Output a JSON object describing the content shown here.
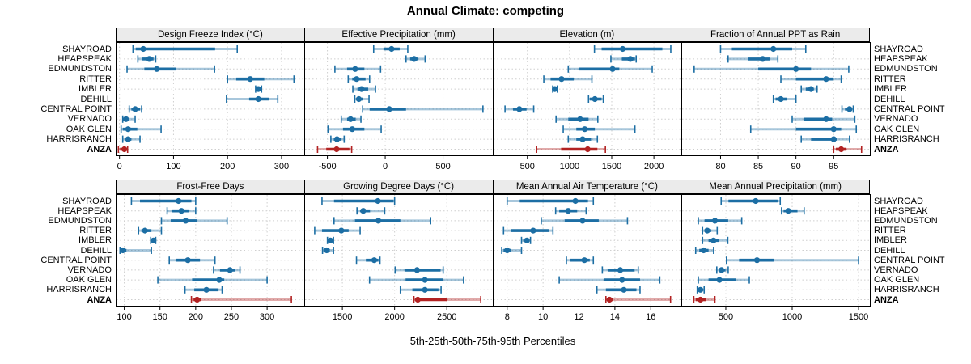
{
  "title": "Annual Climate: competing",
  "caption": "5th-25th-50th-75th-95th Percentiles",
  "percentile_labels": [
    "5th",
    "25th",
    "50th",
    "75th",
    "95th"
  ],
  "locations": [
    "SHAYROAD",
    "HEAPSPEAK",
    "EDMUNDSTON",
    "RITTER",
    "IMBLER",
    "DEHILL",
    "CENTRAL POINT",
    "VERNADO",
    "OAK GLEN",
    "HARRISRANCH",
    "ANZA"
  ],
  "highlight_location": "ANZA",
  "colors": {
    "series_blue": "#1c6ea4",
    "highlight_red": "#b22222",
    "strip_bg": "#ebebeb",
    "grid": "#cfcfcf",
    "border": "#000000",
    "text": "#000000"
  },
  "chart_data": {
    "type": "dotplot",
    "note": "Trellis dot plot; each row shows [5th,25th,50th,75th,95th] percentiles per location",
    "legend_position": "none",
    "grid": "dotted",
    "panels": [
      {
        "title": "Design Freeze Index (°C)",
        "grid_row": 0,
        "grid_col": 0,
        "xlim": [
          -7,
          342
        ],
        "ticks": [
          0,
          100,
          200,
          300
        ],
        "values": [
          [
            25,
            30,
            44,
            177,
            218
          ],
          [
            34,
            41,
            55,
            63,
            67
          ],
          [
            14,
            46,
            69,
            105,
            176
          ],
          [
            200,
            216,
            242,
            268,
            323
          ],
          [
            252,
            255,
            257,
            260,
            263
          ],
          [
            198,
            240,
            257,
            277,
            293
          ],
          [
            18,
            22,
            29,
            38,
            41
          ],
          [
            6,
            8,
            12,
            17,
            29
          ],
          [
            3,
            6,
            16,
            33,
            77
          ],
          [
            6,
            11,
            16,
            22,
            38
          ],
          [
            -2,
            1,
            9,
            13,
            15
          ]
        ]
      },
      {
        "title": "Effective Precipitation (mm)",
        "grid_row": 0,
        "grid_col": 1,
        "xlim": [
          -700,
          930
        ],
        "ticks": [
          -500,
          0,
          500
        ],
        "values": [
          [
            -100,
            -15,
            55,
            125,
            195
          ],
          [
            180,
            215,
            250,
            285,
            345
          ],
          [
            -435,
            -330,
            -260,
            -180,
            -40
          ],
          [
            -320,
            -285,
            -247,
            -170,
            -135
          ],
          [
            -280,
            -240,
            -205,
            -147,
            -84
          ],
          [
            -263,
            -250,
            -228,
            -193,
            -140
          ],
          [
            -195,
            -135,
            35,
            180,
            845
          ],
          [
            -380,
            -330,
            -300,
            -255,
            -210
          ],
          [
            -495,
            -365,
            -285,
            -180,
            -35
          ],
          [
            -470,
            -445,
            -417,
            -378,
            -355
          ],
          [
            -585,
            -510,
            -420,
            -310,
            -290
          ]
        ]
      },
      {
        "title": "Elevation (m)",
        "grid_row": 0,
        "grid_col": 2,
        "xlim": [
          90,
          2325
        ],
        "ticks": [
          500,
          1000,
          1500,
          2000
        ],
        "values": [
          [
            1295,
            1380,
            1630,
            2100,
            2200
          ],
          [
            1490,
            1620,
            1720,
            1775,
            1790
          ],
          [
            985,
            1110,
            1510,
            1590,
            1980
          ],
          [
            695,
            775,
            905,
            1050,
            1265
          ],
          [
            800,
            815,
            825,
            840,
            855
          ],
          [
            1225,
            1240,
            1300,
            1380,
            1400
          ],
          [
            235,
            330,
            405,
            490,
            575
          ],
          [
            840,
            985,
            1125,
            1225,
            1335
          ],
          [
            925,
            1080,
            1180,
            1300,
            1775
          ],
          [
            985,
            1080,
            1155,
            1255,
            1330
          ],
          [
            610,
            900,
            1215,
            1330,
            1425
          ]
        ]
      },
      {
        "title": "Fraction of Annual PPT as Rain",
        "grid_row": 0,
        "grid_col": 3,
        "xlim": [
          74.8,
          99.8
        ],
        "ticks": [
          80,
          85,
          90,
          95
        ],
        "values": [
          [
            80,
            81.5,
            87,
            89.5,
            91.3
          ],
          [
            81,
            83.7,
            85.6,
            86.5,
            87.6
          ],
          [
            76.5,
            85,
            90,
            92,
            97
          ],
          [
            88,
            90,
            94,
            95,
            96
          ],
          [
            90.7,
            91.3,
            92,
            92.3,
            92.8
          ],
          [
            87,
            87.3,
            88,
            88.8,
            90
          ],
          [
            96.1,
            96.5,
            97.1,
            97.3,
            97.6
          ],
          [
            89.5,
            91,
            94,
            94.8,
            97.8
          ],
          [
            84,
            90,
            95,
            96,
            98
          ],
          [
            90.7,
            92,
            95,
            95.5,
            97.1
          ],
          [
            95,
            95.3,
            96,
            96.7,
            98.7
          ]
        ]
      },
      {
        "title": "Frost-Free Days",
        "grid_row": 1,
        "grid_col": 0,
        "xlim": [
          88,
          352
        ],
        "ticks": [
          100,
          150,
          200,
          250,
          300
        ],
        "values": [
          [
            110,
            122,
            176,
            194,
            200
          ],
          [
            160,
            167,
            180,
            190,
            200
          ],
          [
            152,
            165,
            186,
            202,
            244
          ],
          [
            120,
            124,
            129,
            138,
            152
          ],
          [
            137,
            139,
            141,
            142,
            144
          ],
          [
            94,
            95,
            98,
            103,
            138
          ],
          [
            163,
            173,
            189,
            206,
            227
          ],
          [
            225,
            234,
            248,
            255,
            262
          ],
          [
            147,
            195,
            233,
            240,
            300
          ],
          [
            185,
            198,
            215,
            232,
            237
          ],
          [
            194,
            197,
            202,
            208,
            334
          ]
        ]
      },
      {
        "title": "Growing Degree Days (°C)",
        "grid_row": 1,
        "grid_col": 1,
        "xlim": [
          1135,
          2940
        ],
        "ticks": [
          1500,
          2000,
          2500
        ],
        "values": [
          [
            1305,
            1420,
            1840,
            1990,
            2000
          ],
          [
            1640,
            1670,
            1700,
            1765,
            1905
          ],
          [
            1420,
            1620,
            1845,
            2055,
            2345
          ],
          [
            1235,
            1305,
            1490,
            1560,
            1670
          ],
          [
            1357,
            1370,
            1385,
            1400,
            1415
          ],
          [
            1310,
            1320,
            1350,
            1380,
            1415
          ],
          [
            1635,
            1725,
            1805,
            1845,
            1860
          ],
          [
            2005,
            2095,
            2215,
            2440,
            2465
          ],
          [
            1760,
            2105,
            2290,
            2465,
            2660
          ],
          [
            2055,
            2170,
            2290,
            2420,
            2445
          ],
          [
            2185,
            2200,
            2222,
            2500,
            2825
          ]
        ]
      },
      {
        "title": "Mean Annual Air Temperature (°C)",
        "grid_row": 1,
        "grid_col": 2,
        "xlim": [
          7.2,
          17.7
        ],
        "ticks": [
          8,
          10,
          12,
          14,
          16
        ],
        "values": [
          [
            8.0,
            8.7,
            11.8,
            12.5,
            12.8
          ],
          [
            10.7,
            10.9,
            11.4,
            11.9,
            12.4
          ],
          [
            9.9,
            11.2,
            12.2,
            13.1,
            14.7
          ],
          [
            7.8,
            8.2,
            9.45,
            10.35,
            10.55
          ],
          [
            8.8,
            8.9,
            9.1,
            9.2,
            9.3
          ],
          [
            7.7,
            7.8,
            8.0,
            8.2,
            8.8
          ],
          [
            11.3,
            11.5,
            12.3,
            12.6,
            12.8
          ],
          [
            13.3,
            13.6,
            14.3,
            15.1,
            15.3
          ],
          [
            10.9,
            13.4,
            14.4,
            15.4,
            16.5
          ],
          [
            13.0,
            13.5,
            14.5,
            15.2,
            15.4
          ],
          [
            13.5,
            13.6,
            13.7,
            13.9,
            17.1
          ]
        ]
      },
      {
        "title": "Mean Annual Precipitation (mm)",
        "grid_row": 1,
        "grid_col": 3,
        "xlim": [
          165,
          1585
        ],
        "ticks": [
          500,
          1000,
          1500
        ],
        "values": [
          [
            465,
            520,
            725,
            890,
            910
          ],
          [
            920,
            935,
            970,
            1040,
            1090
          ],
          [
            293,
            340,
            418,
            518,
            620
          ],
          [
            325,
            340,
            360,
            390,
            435
          ],
          [
            325,
            370,
            408,
            448,
            515
          ],
          [
            273,
            300,
            333,
            370,
            408
          ],
          [
            505,
            600,
            735,
            865,
            1500
          ],
          [
            432,
            448,
            468,
            498,
            518
          ],
          [
            293,
            370,
            452,
            578,
            677
          ],
          [
            285,
            298,
            309,
            322,
            337
          ],
          [
            259,
            273,
            309,
            349,
            418
          ]
        ]
      }
    ]
  }
}
